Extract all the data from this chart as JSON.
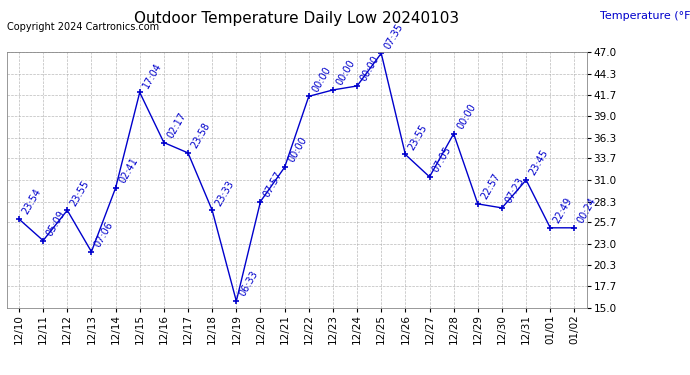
{
  "title": "Outdoor Temperature Daily Low 20240103",
  "copyright": "Copyright 2024 Cartronics.com",
  "ylabel": "Temperature (°F)",
  "background_color": "#ffffff",
  "line_color": "#0000cc",
  "grid_color": "#aaaaaa",
  "dates": [
    "12/10",
    "12/11",
    "12/12",
    "12/13",
    "12/14",
    "12/15",
    "12/16",
    "12/17",
    "12/18",
    "12/19",
    "12/20",
    "12/21",
    "12/22",
    "12/23",
    "12/24",
    "12/25",
    "12/26",
    "12/27",
    "12/28",
    "12/29",
    "12/30",
    "12/31",
    "01/01",
    "01/02"
  ],
  "values": [
    26.1,
    23.4,
    27.2,
    22.0,
    30.0,
    42.0,
    35.7,
    34.4,
    27.2,
    15.8,
    28.3,
    32.6,
    41.5,
    42.3,
    42.8,
    46.9,
    34.2,
    31.4,
    36.8,
    28.0,
    27.5,
    31.0,
    25.0,
    25.0
  ],
  "time_labels": [
    "23:54",
    "05:09",
    "23:55",
    "07:06",
    "02:41",
    "17:04",
    "02:17",
    "23:58",
    "23:33",
    "06:33",
    "07:57",
    "00:00",
    "00:00",
    "00:00",
    "00:00",
    "07:35",
    "23:55",
    "07:05",
    "00:00",
    "22:57",
    "07:23",
    "23:45",
    "22:49",
    "00:24"
  ],
  "ylim_min": 15.0,
  "ylim_max": 47.0,
  "yticks": [
    15.0,
    17.7,
    20.3,
    23.0,
    25.7,
    28.3,
    31.0,
    33.7,
    36.3,
    39.0,
    41.7,
    44.3,
    47.0
  ],
  "title_fontsize": 11,
  "label_fontsize": 8,
  "tick_fontsize": 7.5,
  "copyright_fontsize": 7,
  "annot_fontsize": 7
}
